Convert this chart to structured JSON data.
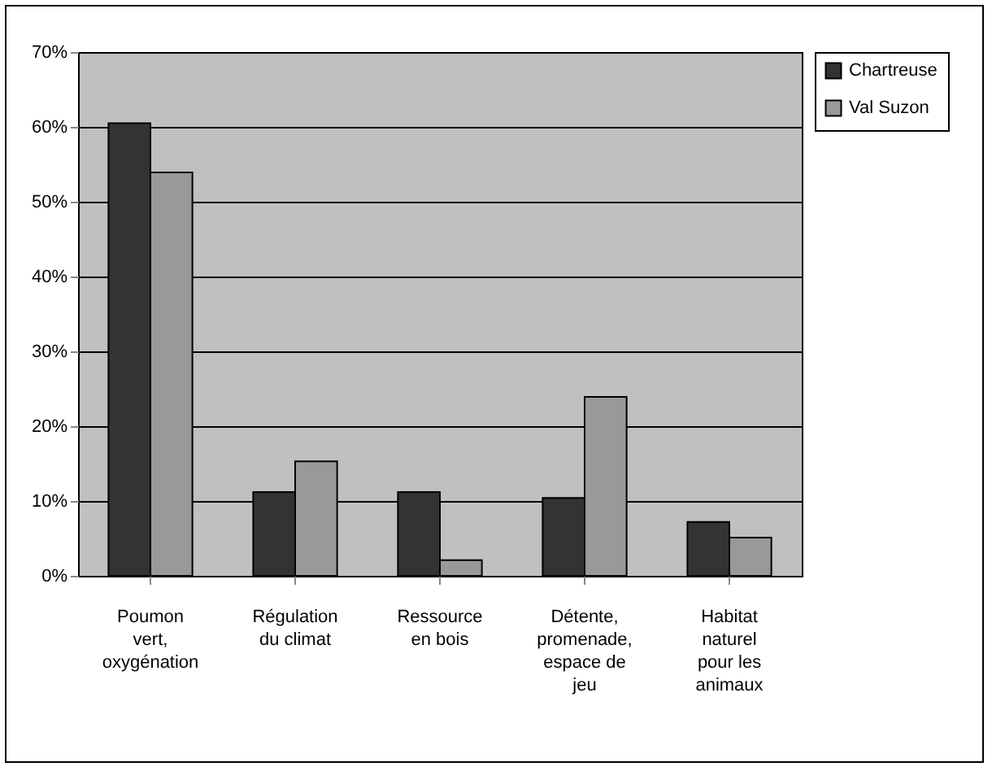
{
  "chart_data": {
    "type": "bar",
    "categories": [
      "Poumon vert, oxygénation",
      "Régulation du climat",
      "Ressource en bois",
      "Détente, promenade, espace de jeu",
      "Habitat naturel pour les animaux"
    ],
    "series": [
      {
        "name": "Chartreuse",
        "color": "#333333",
        "values": [
          60.5,
          11.2,
          11.2,
          10.4,
          7.2
        ]
      },
      {
        "name": "Val Suzon",
        "color": "#999999",
        "values": [
          53.9,
          15.3,
          2.1,
          23.9,
          5.1
        ]
      }
    ],
    "ylim": [
      0,
      70
    ],
    "yticks": [
      {
        "value": 0,
        "label": "0%"
      },
      {
        "value": 10,
        "label": "10%"
      },
      {
        "value": 20,
        "label": "20%"
      },
      {
        "value": 30,
        "label": "30%"
      },
      {
        "value": 40,
        "label": "40%"
      },
      {
        "value": 50,
        "label": "50%"
      },
      {
        "value": 60,
        "label": "60%"
      },
      {
        "value": 70,
        "label": "70%"
      }
    ],
    "grid": "y",
    "legend": "right"
  }
}
